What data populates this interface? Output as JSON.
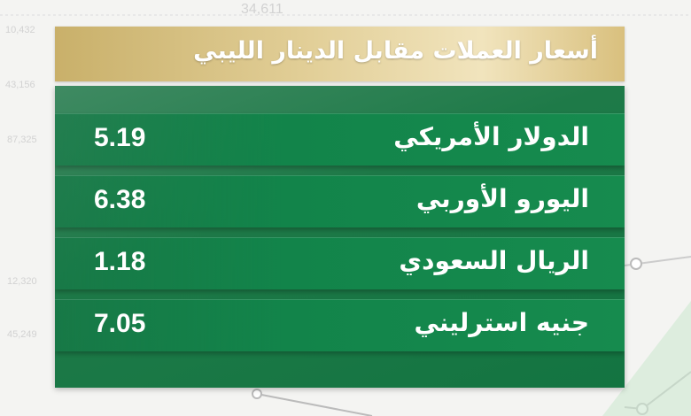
{
  "title": "أسعار العملات مقابل الدينار الليبي",
  "rates": [
    {
      "currency": "الدولار الأمريكي",
      "value": "5.19"
    },
    {
      "currency": "اليورو الأوربي",
      "value": "6.38"
    },
    {
      "currency": "الريال السعودي",
      "value": "1.18"
    },
    {
      "currency": "جنيه استرليني",
      "value": "7.05"
    }
  ],
  "background_numbers": [
    "34,611",
    "10,432",
    "43,156",
    "87,325",
    "12,320",
    "45,249"
  ],
  "colors": {
    "header_gold": "#d9c07e",
    "panel_green": "#168b4e",
    "text": "#ffffff"
  }
}
